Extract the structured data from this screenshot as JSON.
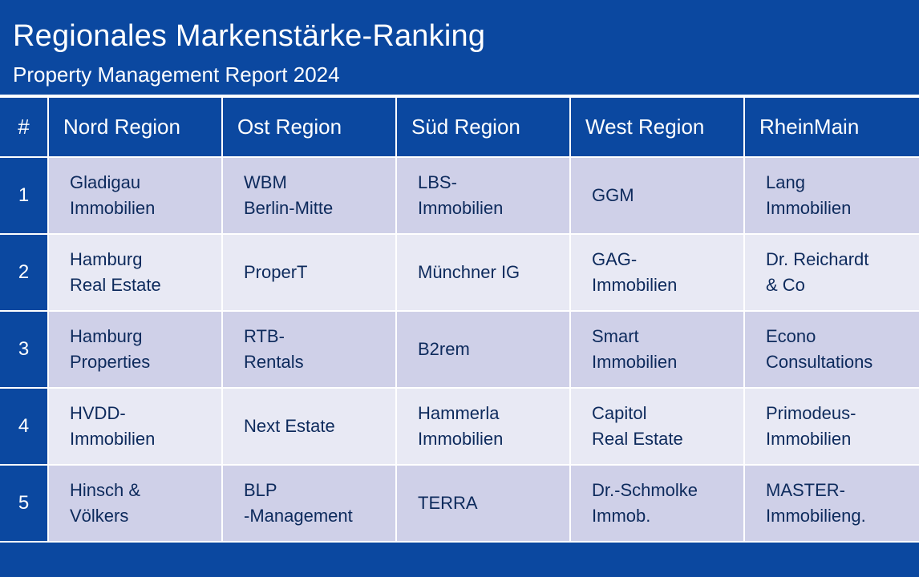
{
  "header": {
    "title": "Regionales Markenstärke-Ranking",
    "subtitle": "Property Management Report 2024"
  },
  "table": {
    "columns": [
      "#",
      "Nord Region",
      "Ost Region",
      "Süd Region",
      "West Region",
      "RheinMain"
    ],
    "rows": [
      {
        "rank": "1",
        "cells": [
          [
            "Gladigau",
            "Immobilien"
          ],
          [
            "WBM",
            "Berlin-Mitte"
          ],
          [
            "LBS-",
            "Immobilien"
          ],
          [
            "GGM"
          ],
          [
            "Lang",
            "Immobilien"
          ]
        ]
      },
      {
        "rank": "2",
        "cells": [
          [
            "Hamburg",
            "Real Estate"
          ],
          [
            "ProperT"
          ],
          [
            "Münchner IG"
          ],
          [
            "GAG-",
            "Immobilien"
          ],
          [
            "Dr. Reichardt",
            "& Co"
          ]
        ]
      },
      {
        "rank": "3",
        "cells": [
          [
            "Hamburg",
            "Properties"
          ],
          [
            "RTB-",
            "Rentals"
          ],
          [
            "B2rem"
          ],
          [
            "Smart",
            "Immobilien"
          ],
          [
            "Econo",
            "Consultations"
          ]
        ]
      },
      {
        "rank": "4",
        "cells": [
          [
            "HVDD-",
            "Immobilien"
          ],
          [
            "Next Estate"
          ],
          [
            "Hammerla",
            "Immobilien"
          ],
          [
            "Capitol",
            "Real Estate"
          ],
          [
            "Primodeus-",
            "Immobilien"
          ]
        ]
      },
      {
        "rank": "5",
        "cells": [
          [
            "Hinsch &",
            "Völkers"
          ],
          [
            "BLP",
            "-Management"
          ],
          [
            "TERRA"
          ],
          [
            "Dr.-Schmolke",
            "Immob."
          ],
          [
            "MASTER-",
            "Immobilieng."
          ]
        ]
      }
    ]
  },
  "colors": {
    "brand_blue": "#0b48a0",
    "row_odd": "#cfd0e8",
    "row_even": "#e8e9f4",
    "cell_text": "#0d2a5c",
    "header_text": "#ffffff"
  }
}
